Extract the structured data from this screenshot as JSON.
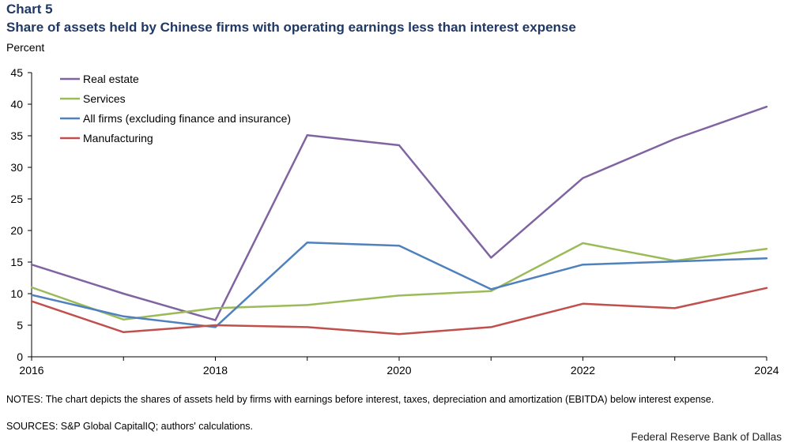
{
  "header": {
    "chart_label": "Chart 5",
    "title": "Share of assets held by Chinese firms with operating earnings less than interest expense",
    "unit": "Percent"
  },
  "footer": {
    "notes": "NOTES: The chart depicts the shares of assets held by firms with earnings before interest, taxes, depreciation and amortization (EBITDA) below interest expense.",
    "sources": "SOURCES: S&P Global CapitalIQ; authors' calculations.",
    "credit": "Federal Reserve Bank of Dallas"
  },
  "chart_data": {
    "type": "line",
    "title": "Share of assets held by Chinese firms with operating earnings less than interest expense",
    "xlabel": "",
    "ylabel": "Percent",
    "x": [
      2016,
      2017,
      2018,
      2019,
      2020,
      2021,
      2022,
      2023,
      2024
    ],
    "xticks": [
      "2016",
      "2018",
      "2020",
      "2022",
      "2024"
    ],
    "xlim": [
      2016,
      2024
    ],
    "ylim": [
      0,
      45
    ],
    "yticks": [
      0,
      5,
      10,
      15,
      20,
      25,
      30,
      35,
      40,
      45
    ],
    "grid": false,
    "legend_position": "top-left",
    "series": [
      {
        "name": "Real estate",
        "color": "#8064a2",
        "values": [
          14.6,
          10.0,
          5.8,
          35.1,
          33.5,
          15.7,
          28.3,
          34.5,
          39.6
        ]
      },
      {
        "name": "Services",
        "color": "#9bbb59",
        "values": [
          11.0,
          5.9,
          7.7,
          8.2,
          9.7,
          10.4,
          18.0,
          15.2,
          17.1
        ]
      },
      {
        "name": "All firms (excluding finance and insurance)",
        "color": "#4f81bd",
        "values": [
          9.8,
          6.4,
          4.7,
          18.1,
          17.6,
          10.7,
          14.6,
          15.1,
          15.6
        ]
      },
      {
        "name": "Manufacturing",
        "color": "#c0504d",
        "values": [
          8.8,
          3.9,
          5.0,
          4.7,
          3.6,
          4.7,
          8.4,
          7.7,
          10.9
        ]
      }
    ]
  }
}
